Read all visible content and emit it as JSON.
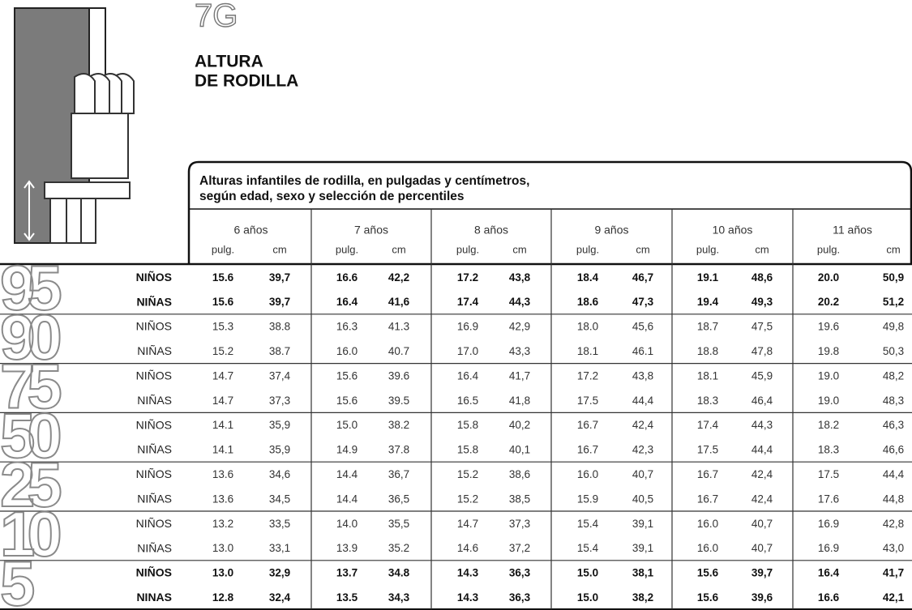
{
  "header": {
    "code": "7G",
    "title_lines": [
      "ALTURA",
      "DE RODILLA"
    ]
  },
  "table": {
    "caption": [
      "Alturas infantiles de rodilla, en pulgadas y centímetros,",
      "según edad, sexo y selección de percentiles"
    ],
    "ages": [
      "6 años",
      "7 años",
      "8 años",
      "9 años",
      "10 años",
      "11 años"
    ],
    "units": [
      "pulg.",
      "cm"
    ],
    "groups": [
      {
        "percentile": "95",
        "rows": [
          {
            "label": "NIÑOS",
            "values": [
              "15.6",
              "39,7",
              "16.6",
              "42,2",
              "17.2",
              "43,8",
              "18.4",
              "46,7",
              "19.1",
              "48,6",
              "20.0",
              "50,9"
            ]
          },
          {
            "label": "NIÑAS",
            "values": [
              "15.6",
              "39,7",
              "16.4",
              "41,6",
              "17.4",
              "44,3",
              "18.6",
              "47,3",
              "19.4",
              "49,3",
              "20.2",
              "51,2"
            ]
          }
        ]
      },
      {
        "percentile": "90",
        "rows": [
          {
            "label": "NIÑOS",
            "values": [
              "15.3",
              "38.8",
              "16.3",
              "41.3",
              "16.9",
              "42,9",
              "18.0",
              "45,6",
              "18.7",
              "47,5",
              "19.6",
              "49,8"
            ]
          },
          {
            "label": "NIÑAS",
            "values": [
              "15.2",
              "38.7",
              "16.0",
              "40.7",
              "17.0",
              "43,3",
              "18.1",
              "46.1",
              "18.8",
              "47,8",
              "19.8",
              "50,3"
            ]
          }
        ]
      },
      {
        "percentile": "75",
        "rows": [
          {
            "label": "NIÑOS",
            "values": [
              "14.7",
              "37,4",
              "15.6",
              "39.6",
              "16.4",
              "41,7",
              "17.2",
              "43,8",
              "18.1",
              "45,9",
              "19.0",
              "48,2"
            ]
          },
          {
            "label": "NIÑAS",
            "values": [
              "14.7",
              "37,3",
              "15.6",
              "39.5",
              "16.5",
              "41,8",
              "17.5",
              "44,4",
              "18.3",
              "46,4",
              "19.0",
              "48,3"
            ]
          }
        ]
      },
      {
        "percentile": "50",
        "rows": [
          {
            "label": "NIÑOS",
            "values": [
              "14.1",
              "35,9",
              "15.0",
              "38.2",
              "15.8",
              "40,2",
              "16.7",
              "42,4",
              "17.4",
              "44,3",
              "18.2",
              "46,3"
            ]
          },
          {
            "label": "NIÑAS",
            "values": [
              "14.1",
              "35,9",
              "14.9",
              "37.8",
              "15.8",
              "40,1",
              "16.7",
              "42,3",
              "17.5",
              "44,4",
              "18.3",
              "46,6"
            ]
          }
        ]
      },
      {
        "percentile": "25",
        "rows": [
          {
            "label": "NIÑOS",
            "values": [
              "13.6",
              "34,6",
              "14.4",
              "36,7",
              "15.2",
              "38,6",
              "16.0",
              "40,7",
              "16.7",
              "42,4",
              "17.5",
              "44,4"
            ]
          },
          {
            "label": "NIÑAS",
            "values": [
              "13.6",
              "34,5",
              "14.4",
              "36,5",
              "15.2",
              "38,5",
              "15.9",
              "40,5",
              "16.7",
              "42,4",
              "17.6",
              "44,8"
            ]
          }
        ]
      },
      {
        "percentile": "10",
        "rows": [
          {
            "label": "NIÑOS",
            "values": [
              "13.2",
              "33,5",
              "14.0",
              "35,5",
              "14.7",
              "37,3",
              "15.4",
              "39,1",
              "16.0",
              "40,7",
              "16.9",
              "42,8"
            ]
          },
          {
            "label": "NIÑAS",
            "values": [
              "13.0",
              "33,1",
              "13.9",
              "35.2",
              "14.6",
              "37,2",
              "15.4",
              "39,1",
              "16.0",
              "40,7",
              "16.9",
              "43,0"
            ]
          }
        ]
      },
      {
        "percentile": "5",
        "rows": [
          {
            "label": "NIÑOS",
            "values": [
              "13.0",
              "32,9",
              "13.7",
              "34.8",
              "14.3",
              "36,3",
              "15.0",
              "38,1",
              "15.6",
              "39,7",
              "16.4",
              "41,7"
            ]
          },
          {
            "label": "NINAS",
            "values": [
              "12.8",
              "32,4",
              "13.5",
              "34,3",
              "14.3",
              "36,3",
              "15.0",
              "38,2",
              "15.6",
              "39,6",
              "16.6",
              "42,1"
            ]
          }
        ]
      }
    ]
  }
}
